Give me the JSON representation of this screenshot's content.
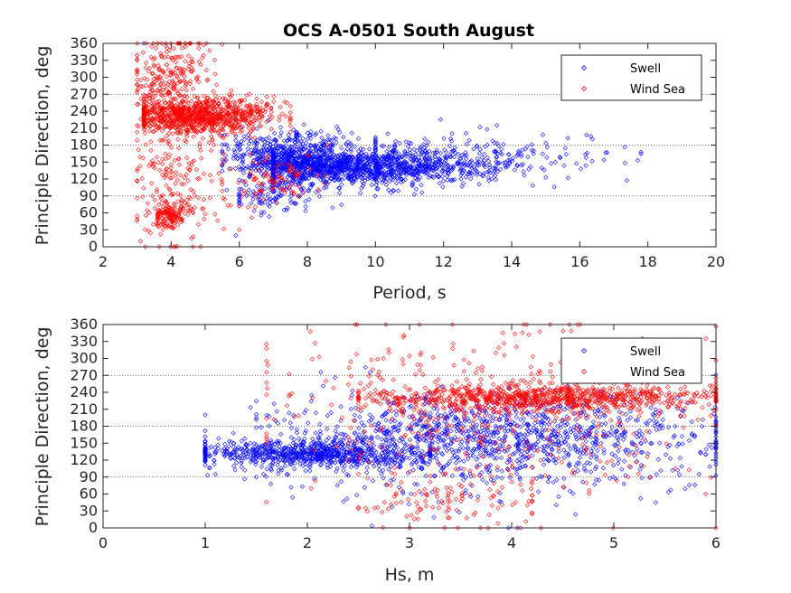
{
  "figure": {
    "title": "OCS A-0501 South August"
  },
  "chart_data": [
    {
      "type": "scatter",
      "title": "OCS A-0501 South August",
      "xlabel": "Period, s",
      "ylabel": "Principle Direction, deg",
      "xlim": [
        2,
        20
      ],
      "ylim": [
        0,
        360
      ],
      "xticks": [
        "2",
        "4",
        "6",
        "8",
        "10",
        "12",
        "14",
        "16",
        "18",
        "20"
      ],
      "yticks": [
        "0",
        "30",
        "60",
        "90",
        "120",
        "150",
        "180",
        "210",
        "240",
        "270",
        "300",
        "330",
        "360"
      ],
      "reference_lines": [
        90,
        180,
        270
      ],
      "legend": {
        "placement": "top-right",
        "entries": [
          "Swell",
          "Wind Sea"
        ]
      },
      "marker": "diamond",
      "colors": {
        "Swell": "#0000ff",
        "Wind Sea": "#ff0000"
      },
      "series": [
        {
          "name": "Swell",
          "clusters": [
            {
              "x_range": [
                7.0,
                14.5
              ],
              "x_mean": 9.5,
              "y_mean": 140,
              "y_sd": 15,
              "count": 1100
            },
            {
              "x_range": [
                5.5,
                9.5
              ],
              "x_mean": 7.5,
              "y_mean": 160,
              "y_sd": 22,
              "count": 600
            },
            {
              "x_range": [
                10.0,
                17.8
              ],
              "x_mean": 12.5,
              "y_mean": 160,
              "y_sd": 20,
              "count": 240
            },
            {
              "x_range": [
                6.0,
                9.0
              ],
              "x_mean": 7.0,
              "y_mean": 90,
              "y_sd": 14,
              "count": 100
            }
          ],
          "extremes": [
            [
              17.7,
              153
            ],
            [
              16.2,
              198
            ],
            [
              3.2,
              360
            ],
            [
              5.9,
              20
            ],
            [
              11.2,
              102
            ]
          ]
        },
        {
          "name": "Wind Sea",
          "clusters": [
            {
              "x_range": [
                3.2,
                7.5
              ],
              "x_mean": 4.8,
              "y_mean": 232,
              "y_sd": 15,
              "count": 900
            },
            {
              "x_range": [
                3.0,
                5.5
              ],
              "x_mean": 3.9,
              "y_mean": 300,
              "y_sd": 40,
              "count": 240
            },
            {
              "x_range": [
                3.0,
                6.0
              ],
              "x_mean": 4.1,
              "y_mean": 120,
              "y_sd": 60,
              "count": 220
            },
            {
              "x_range": [
                3.6,
                4.6
              ],
              "x_mean": 4.0,
              "y_mean": 55,
              "y_sd": 12,
              "count": 120
            },
            {
              "x_range": [
                5.5,
                8.5
              ],
              "x_mean": 7.0,
              "y_mean": 115,
              "y_sd": 20,
              "count": 100
            }
          ],
          "extremes": [
            [
              3.1,
              10
            ],
            [
              8.6,
              180
            ],
            [
              6.3,
              270
            ]
          ]
        }
      ]
    },
    {
      "type": "scatter",
      "xlabel": "Hs, m",
      "ylabel": "Principle Direction, deg",
      "xlim": [
        0,
        6
      ],
      "ylim": [
        0,
        360
      ],
      "xticks": [
        "0",
        "1",
        "2",
        "3",
        "4",
        "5",
        "6"
      ],
      "yticks": [
        "0",
        "30",
        "60",
        "90",
        "120",
        "150",
        "180",
        "210",
        "240",
        "270",
        "300",
        "330",
        "360"
      ],
      "reference_lines": [
        90,
        180,
        270
      ],
      "legend": {
        "placement": "top-right",
        "entries": [
          "Swell",
          "Wind Sea"
        ]
      },
      "marker": "diamond",
      "colors": {
        "Swell": "#0000ff",
        "Wind Sea": "#ff0000"
      },
      "series": [
        {
          "name": "Swell",
          "clusters": [
            {
              "x_range": [
                1.0,
                3.2
              ],
              "x_mean": 2.0,
              "y_mean": 132,
              "y_sd": 12,
              "count": 700
            },
            {
              "x_range": [
                1.5,
                6.0
              ],
              "x_mean": 3.8,
              "y_mean": 165,
              "y_sd": 35,
              "count": 1000
            },
            {
              "x_range": [
                1.0,
                6.0
              ],
              "x_mean": 3.5,
              "y_mean": 120,
              "y_sd": 45,
              "count": 250
            }
          ],
          "extremes": [
            [
              1.0,
              200
            ],
            [
              1.1,
              95
            ],
            [
              5.9,
              130
            ]
          ]
        },
        {
          "name": "Wind Sea",
          "clusters": [
            {
              "x_range": [
                2.5,
                6.0
              ],
              "x_mean": 4.3,
              "y_mean": 230,
              "y_sd": 12,
              "count": 850
            },
            {
              "x_range": [
                1.6,
                6.0
              ],
              "x_mean": 3.8,
              "y_mean": 210,
              "y_sd": 80,
              "count": 450
            },
            {
              "x_range": [
                2.5,
                4.2
              ],
              "x_mean": 3.4,
              "y_mean": 45,
              "y_sd": 25,
              "count": 100
            }
          ],
          "extremes": [
            [
              1.6,
              325
            ],
            [
              5.9,
              335
            ],
            [
              5.9,
              60
            ],
            [
              3.0,
              0
            ]
          ]
        }
      ]
    }
  ]
}
